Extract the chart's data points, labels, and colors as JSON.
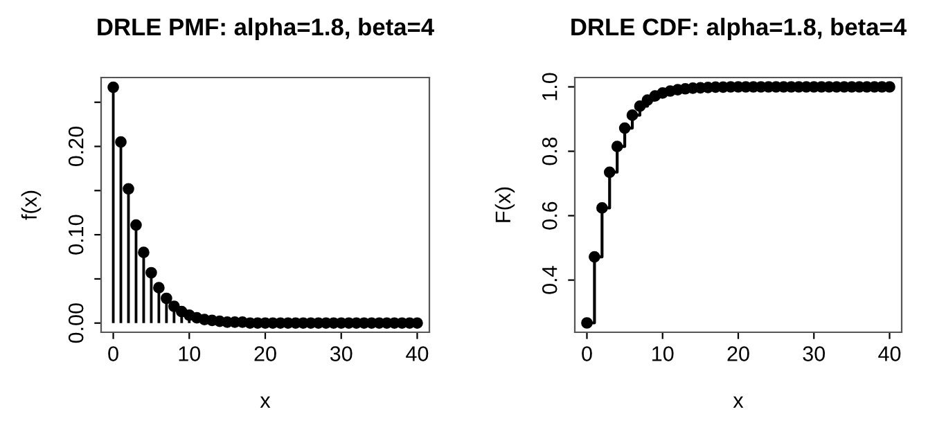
{
  "chart_data": [
    {
      "type": "lollipop",
      "title": "DRLE PMF: alpha=1.8, beta=4",
      "xlabel": "x",
      "ylabel": "f(x)",
      "x": [
        0,
        1,
        2,
        3,
        4,
        5,
        6,
        7,
        8,
        9,
        10,
        11,
        12,
        13,
        14,
        15,
        16,
        17,
        18,
        19,
        20,
        21,
        22,
        23,
        24,
        25,
        26,
        27,
        28,
        29,
        30,
        31,
        32,
        33,
        34,
        35,
        36,
        37,
        38,
        39,
        40
      ],
      "series": [
        {
          "color": "#000000",
          "values": [
            0.267,
            0.205,
            0.152,
            0.111,
            0.08,
            0.057,
            0.04,
            0.028,
            0.019,
            0.013,
            0.009,
            0.006,
            0.004,
            0.003,
            0.002,
            0.001,
            0.001,
            0.001,
            0,
            0,
            0,
            0,
            0,
            0,
            0,
            0,
            0,
            0,
            0,
            0,
            0,
            0,
            0,
            0,
            0,
            0,
            0,
            0,
            0,
            0,
            0
          ]
        }
      ],
      "xlim": [
        -1.6,
        41.6
      ],
      "ylim": [
        -0.0104,
        0.278
      ],
      "xticks": [
        0,
        10,
        20,
        30,
        40
      ],
      "yticks": [
        {
          "value": 0,
          "label": "0.00"
        },
        {
          "value": 0.05,
          "label": null
        },
        {
          "value": 0.1,
          "label": "0.10"
        },
        {
          "value": 0.15,
          "label": null
        },
        {
          "value": 0.2,
          "label": "0.20"
        },
        {
          "value": 0.25,
          "label": null
        }
      ],
      "marker": "circle",
      "grid": false,
      "legend": false
    },
    {
      "type": "step",
      "title": "DRLE CDF: alpha=1.8, beta=4",
      "xlabel": "x",
      "ylabel": "F(x)",
      "x": [
        0,
        1,
        2,
        3,
        4,
        5,
        6,
        7,
        8,
        9,
        10,
        11,
        12,
        13,
        14,
        15,
        16,
        17,
        18,
        19,
        20,
        21,
        22,
        23,
        24,
        25,
        26,
        27,
        28,
        29,
        30,
        31,
        32,
        33,
        34,
        35,
        36,
        37,
        38,
        39,
        40
      ],
      "series": [
        {
          "color": "#000000",
          "values": [
            0.267,
            0.472,
            0.624,
            0.735,
            0.815,
            0.872,
            0.912,
            0.94,
            0.959,
            0.972,
            0.981,
            0.987,
            0.991,
            0.994,
            0.996,
            0.997,
            0.998,
            0.999,
            0.999,
            1,
            1,
            1,
            1,
            1,
            1,
            1,
            1,
            1,
            1,
            1,
            1,
            1,
            1,
            1,
            1,
            1,
            1,
            1,
            1,
            1,
            1
          ]
        }
      ],
      "xlim": [
        -1.6,
        41.6
      ],
      "ylim": [
        0.238,
        1.029
      ],
      "xticks": [
        0,
        10,
        20,
        30,
        40
      ],
      "yticks": [
        {
          "value": 0.4,
          "label": "0.4"
        },
        {
          "value": 0.6,
          "label": "0.6"
        },
        {
          "value": 0.8,
          "label": "0.8"
        },
        {
          "value": 1.0,
          "label": "1.0"
        }
      ],
      "marker": "circle",
      "grid": false,
      "legend": false
    }
  ]
}
